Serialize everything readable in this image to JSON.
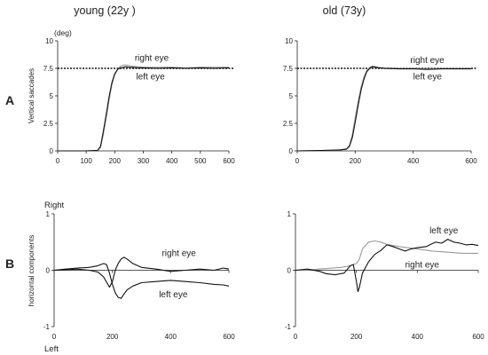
{
  "figure": {
    "column_titles": [
      "young (22y )",
      "old (73y)"
    ],
    "row_letters": [
      "A",
      "B"
    ],
    "top_unit": "(deg)",
    "top_ylabel": "Vertical saccades",
    "bottom_ylabel": "horizontal components",
    "dir_top": "Right",
    "dir_bottom": "Left"
  },
  "colors": {
    "dark": "#111111",
    "gray": "#9a9a9a"
  },
  "chart_data": [
    {
      "type": "line",
      "panel": "A-young",
      "title": "young (22y )",
      "xlim": [
        0,
        600
      ],
      "ylim": [
        0,
        10
      ],
      "grid": false,
      "xticks": [
        "0",
        "100",
        "200",
        "300",
        "400",
        "500",
        "600"
      ],
      "yticks": [
        "0",
        "2.5",
        "5",
        "7.5",
        "10"
      ],
      "ylabel": "Vertical saccades",
      "yunit": "(deg)",
      "reference": {
        "y": 7.5,
        "style": "dotted"
      },
      "annotations": [
        {
          "text": "right eye",
          "x": 270,
          "y": 8.2
        },
        {
          "text": "left eye",
          "x": 275,
          "y": 6.5
        }
      ],
      "series": [
        {
          "name": "right eye",
          "color": "gray",
          "x": [
            0,
            40,
            100,
            140,
            150,
            160,
            170,
            180,
            190,
            200,
            210,
            220,
            230,
            240,
            250,
            260,
            280,
            300,
            350,
            400,
            450,
            500,
            550,
            600
          ],
          "y": [
            0,
            0,
            0,
            0.05,
            0.3,
            1.5,
            3.0,
            4.6,
            6.0,
            6.9,
            7.4,
            7.7,
            7.8,
            7.8,
            7.75,
            7.7,
            7.65,
            7.6,
            7.6,
            7.6,
            7.55,
            7.6,
            7.6,
            7.6
          ]
        },
        {
          "name": "left eye",
          "color": "dark",
          "x": [
            0,
            40,
            100,
            140,
            150,
            160,
            170,
            180,
            190,
            200,
            210,
            220,
            230,
            240,
            250,
            260,
            280,
            300,
            350,
            400,
            450,
            500,
            550,
            600
          ],
          "y": [
            0,
            0,
            0,
            0.05,
            0.4,
            1.8,
            3.3,
            4.9,
            6.2,
            7.0,
            7.4,
            7.55,
            7.6,
            7.65,
            7.6,
            7.6,
            7.55,
            7.55,
            7.5,
            7.55,
            7.5,
            7.55,
            7.5,
            7.55
          ]
        }
      ]
    },
    {
      "type": "line",
      "panel": "A-old",
      "title": "old (73y)",
      "xlim": [
        0,
        600
      ],
      "ylim": [
        0,
        10
      ],
      "grid": false,
      "xticks": [
        "0",
        "200",
        "400",
        "600"
      ],
      "yticks": [
        "0",
        "2.5",
        "5",
        "7.5",
        "10"
      ],
      "reference": {
        "y": 7.5,
        "style": "dotted"
      },
      "annotations": [
        {
          "text": "right eye",
          "x": 390,
          "y": 8.0
        },
        {
          "text": "left eye",
          "x": 400,
          "y": 6.5
        }
      ],
      "series": [
        {
          "name": "right eye",
          "color": "gray",
          "x": [
            0,
            100,
            150,
            170,
            180,
            190,
            200,
            210,
            220,
            230,
            240,
            250,
            260,
            280,
            300,
            350,
            400,
            450,
            500,
            550,
            600
          ],
          "y": [
            0,
            0.05,
            0.1,
            0.2,
            0.5,
            1.5,
            3.0,
            4.5,
            5.8,
            6.7,
            7.3,
            7.6,
            7.7,
            7.6,
            7.55,
            7.5,
            7.5,
            7.45,
            7.5,
            7.5,
            7.5
          ]
        },
        {
          "name": "left eye",
          "color": "dark",
          "x": [
            0,
            100,
            150,
            170,
            180,
            190,
            200,
            210,
            220,
            230,
            240,
            250,
            260,
            280,
            300,
            350,
            400,
            450,
            500,
            550,
            600
          ],
          "y": [
            0,
            0.05,
            0.1,
            0.15,
            0.4,
            1.2,
            2.6,
            4.1,
            5.5,
            6.5,
            7.2,
            7.5,
            7.65,
            7.55,
            7.5,
            7.45,
            7.45,
            7.4,
            7.45,
            7.45,
            7.45
          ]
        }
      ]
    },
    {
      "type": "line",
      "panel": "B-young",
      "xlim": [
        0,
        600
      ],
      "ylim": [
        -1,
        1
      ],
      "grid": false,
      "xticks": [
        "0",
        "200",
        "400",
        "600"
      ],
      "yticks": [
        "-1",
        "0",
        "1"
      ],
      "ylabel": "horizontal components",
      "annotations": [
        {
          "text": "right eye",
          "x": 370,
          "y": 0.25
        },
        {
          "text": "left eye",
          "x": 360,
          "y": -0.48
        }
      ],
      "series": [
        {
          "name": "right eye",
          "color": "dark",
          "x": [
            0,
            40,
            80,
            120,
            150,
            170,
            190,
            200,
            210,
            220,
            230,
            240,
            250,
            270,
            300,
            350,
            400,
            450,
            500,
            550,
            580,
            600
          ],
          "y": [
            0,
            0.01,
            0.02,
            0.0,
            -0.03,
            -0.12,
            -0.3,
            -0.2,
            0.0,
            0.12,
            0.2,
            0.23,
            0.2,
            0.12,
            0.05,
            0.02,
            -0.02,
            0.0,
            0.02,
            0.0,
            0.04,
            0.02
          ]
        },
        {
          "name": "left eye",
          "color": "dark",
          "x": [
            0,
            40,
            80,
            120,
            150,
            170,
            180,
            190,
            200,
            210,
            220,
            230,
            240,
            250,
            270,
            300,
            350,
            400,
            450,
            500,
            550,
            580,
            600
          ],
          "y": [
            0,
            0.02,
            0.04,
            0.05,
            0.08,
            0.12,
            0.1,
            -0.05,
            -0.25,
            -0.4,
            -0.48,
            -0.5,
            -0.42,
            -0.35,
            -0.28,
            -0.22,
            -0.2,
            -0.18,
            -0.2,
            -0.22,
            -0.25,
            -0.26,
            -0.28
          ]
        }
      ]
    },
    {
      "type": "line",
      "panel": "B-old",
      "xlim": [
        0,
        600
      ],
      "ylim": [
        -1,
        1
      ],
      "grid": false,
      "xticks": [
        "0",
        "200",
        "400",
        "600"
      ],
      "yticks": [
        "-1",
        "0",
        "1"
      ],
      "annotations": [
        {
          "text": "left eye",
          "x": 440,
          "y": 0.65
        },
        {
          "text": "right eye",
          "x": 360,
          "y": 0.05
        }
      ],
      "series": [
        {
          "name": "right eye",
          "color": "gray",
          "x": [
            0,
            50,
            100,
            150,
            180,
            200,
            210,
            220,
            240,
            260,
            280,
            300,
            340,
            400,
            450,
            500,
            550,
            600
          ],
          "y": [
            0,
            0.01,
            0.03,
            0.05,
            0.08,
            0.12,
            0.2,
            0.38,
            0.5,
            0.52,
            0.5,
            0.46,
            0.42,
            0.38,
            0.34,
            0.32,
            0.3,
            0.3
          ]
        },
        {
          "name": "left eye",
          "color": "dark",
          "x": [
            0,
            40,
            80,
            100,
            130,
            160,
            180,
            190,
            200,
            205,
            210,
            220,
            240,
            260,
            280,
            300,
            320,
            340,
            360,
            380,
            400,
            430,
            460,
            480,
            500,
            520,
            540,
            560,
            580,
            600
          ],
          "y": [
            0,
            0.02,
            -0.02,
            -0.06,
            -0.08,
            -0.05,
            0.08,
            0.1,
            -0.2,
            -0.38,
            -0.3,
            -0.05,
            0.15,
            0.28,
            0.35,
            0.45,
            0.42,
            0.38,
            0.34,
            0.38,
            0.4,
            0.42,
            0.5,
            0.48,
            0.55,
            0.5,
            0.48,
            0.45,
            0.46,
            0.44
          ]
        }
      ]
    }
  ]
}
